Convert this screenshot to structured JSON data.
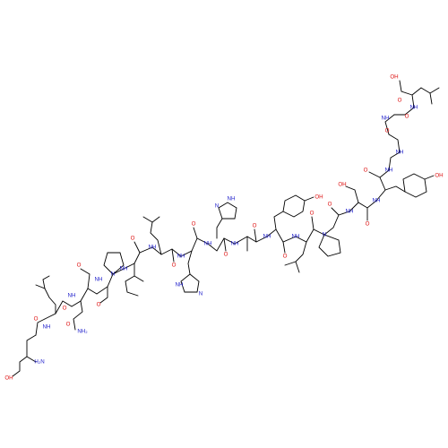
{
  "colors": {
    "bond": "#000000",
    "oxygen": "#dd1111",
    "nitrogen": "#2222cc",
    "background": "#ffffff"
  },
  "labels": {
    "ho_ser": "OH",
    "h2n": "H₂N",
    "cooh_oh": "OH",
    "nh2_amide": "NH₂",
    "oh_tyr1": "OH",
    "oh_ser2": "OH",
    "oh_tyr2": "OH",
    "his1_nh": "NH",
    "his2_nh": "NH",
    "his1_n": "N",
    "his2_n": "N",
    "o": "O",
    "nh": "NH",
    "n": "N",
    "h": "H"
  }
}
